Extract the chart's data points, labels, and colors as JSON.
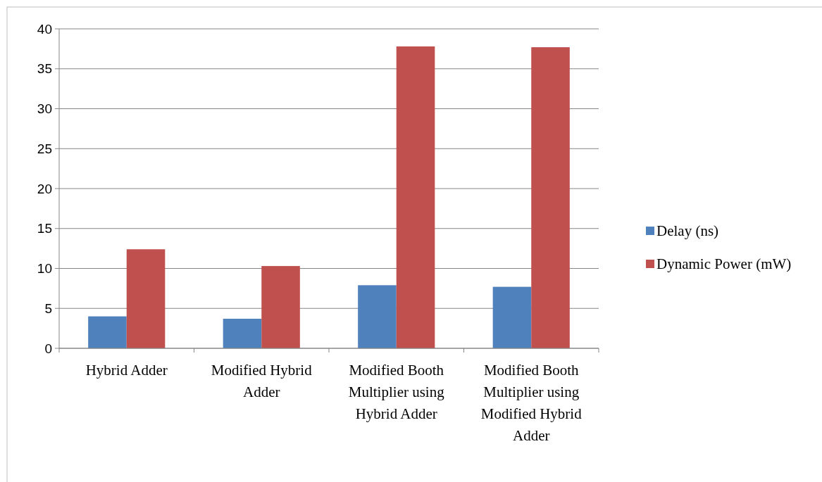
{
  "chart_data": {
    "type": "bar",
    "categories": [
      "Hybrid Adder",
      "Modified Hybrid Adder",
      "Modified Booth Multiplier using Hybrid Adder",
      "Modified Booth Multiplier using Modified Hybrid Adder"
    ],
    "series": [
      {
        "name": "Delay (ns)",
        "color": "#4f81bd",
        "values": [
          4.0,
          3.7,
          7.9,
          7.7
        ]
      },
      {
        "name": "Dynamic Power (mW)",
        "color": "#c0504d",
        "values": [
          12.4,
          10.3,
          37.8,
          37.7
        ]
      }
    ],
    "ylim": [
      0,
      40
    ],
    "yticks": [
      0,
      5,
      10,
      15,
      20,
      25,
      30,
      35,
      40
    ],
    "grid": "y",
    "legend": "right"
  }
}
